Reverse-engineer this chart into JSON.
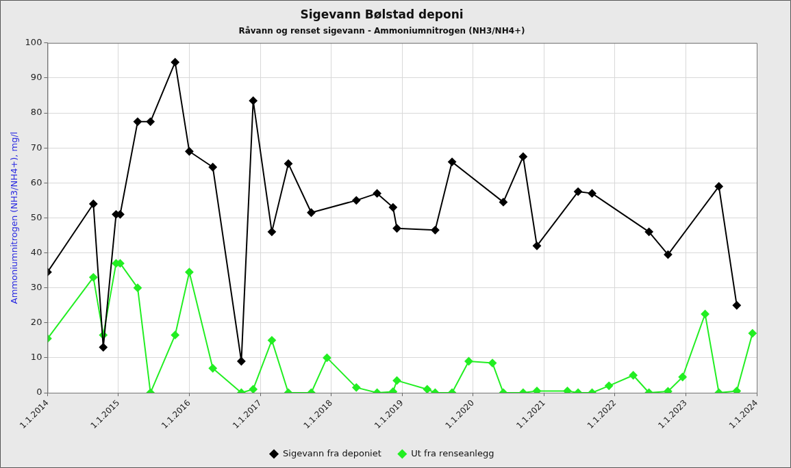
{
  "chart_data": {
    "type": "line",
    "title": "Sigevann Bølstad deponi",
    "subtitle": "Råvann og renset sigevann - Ammoniumnitrogen (NH3/NH4+)",
    "ylabel": "Ammoniumnitrogen (NH3/NH4+), mg/l",
    "series": [
      {
        "name": "Sigevann fra deponiet",
        "color": "#000000",
        "x": [
          "2014-01-01",
          "2014-08-25",
          "2014-10-15",
          "2014-12-20",
          "2015-01-10",
          "2015-04-10",
          "2015-06-15",
          "2015-10-20",
          "2016-01-01",
          "2016-05-01",
          "2016-09-25",
          "2016-11-25",
          "2017-03-01",
          "2017-05-25",
          "2017-09-20",
          "2018-05-10",
          "2018-08-25",
          "2018-11-15",
          "2018-12-05",
          "2019-06-20",
          "2019-09-15",
          "2020-06-05",
          "2020-09-15",
          "2020-11-25",
          "2021-06-25",
          "2021-09-05",
          "2022-06-25",
          "2022-10-01",
          "2023-06-20",
          "2023-09-20"
        ],
        "values": [
          34.5,
          54,
          13,
          51,
          51,
          77.5,
          77.5,
          94.5,
          69,
          64.5,
          9,
          83.5,
          46,
          65.5,
          51.5,
          55,
          57,
          53,
          47,
          46.5,
          66,
          54.5,
          67.5,
          42,
          57.5,
          57,
          46,
          39.5,
          59,
          25
        ]
      },
      {
        "name": "Ut fra renseanlegg",
        "color": "#22ee22",
        "x": [
          "2014-01-01",
          "2014-08-25",
          "2014-10-15",
          "2014-12-20",
          "2015-01-10",
          "2015-04-10",
          "2015-06-15",
          "2015-10-20",
          "2016-01-01",
          "2016-05-01",
          "2016-09-25",
          "2016-11-25",
          "2017-03-01",
          "2017-05-25",
          "2017-09-20",
          "2017-12-10",
          "2018-05-10",
          "2018-08-25",
          "2018-11-15",
          "2018-12-05",
          "2019-05-10",
          "2019-06-20",
          "2019-09-15",
          "2019-12-10",
          "2020-04-10",
          "2020-06-05",
          "2020-09-15",
          "2020-11-25",
          "2021-05-01",
          "2021-06-25",
          "2021-09-05",
          "2021-12-01",
          "2022-04-05",
          "2022-06-25",
          "2022-10-01",
          "2022-12-15",
          "2023-04-10",
          "2023-06-20",
          "2023-09-20",
          "2023-12-10"
        ],
        "values": [
          15.5,
          33,
          16.5,
          37,
          37,
          30,
          0,
          16.5,
          34.5,
          7,
          0,
          1,
          15,
          0,
          0,
          10,
          1.5,
          0,
          0.3,
          3.5,
          1,
          0,
          0,
          9,
          8.5,
          0,
          0,
          0.5,
          0.5,
          0,
          0,
          2,
          5,
          0,
          0.4,
          4.5,
          22.5,
          0,
          0.5,
          17
        ]
      }
    ],
    "xlim": [
      "2014-01-01",
      "2024-01-01"
    ],
    "xticks": [
      {
        "value": "2014-01-01",
        "label": "1.1.2014"
      },
      {
        "value": "2015-01-01",
        "label": "1.1.2015"
      },
      {
        "value": "2016-01-01",
        "label": "1.1.2016"
      },
      {
        "value": "2017-01-01",
        "label": "1.1.2017"
      },
      {
        "value": "2018-01-01",
        "label": "1.1.2018"
      },
      {
        "value": "2019-01-01",
        "label": "1.1.2019"
      },
      {
        "value": "2020-01-01",
        "label": "1.1.2020"
      },
      {
        "value": "2021-01-01",
        "label": "1.1.2021"
      },
      {
        "value": "2022-01-01",
        "label": "1.1.2022"
      },
      {
        "value": "2023-01-01",
        "label": "1.1.2023"
      },
      {
        "value": "2024-01-01",
        "label": "1.1.2024"
      }
    ],
    "ylim": [
      0,
      100
    ],
    "yticks": [
      0,
      10,
      20,
      30,
      40,
      50,
      60,
      70,
      80,
      90,
      100
    ],
    "grid": true,
    "legend": "bottom",
    "marker": "diamond",
    "line_style": "solid"
  }
}
